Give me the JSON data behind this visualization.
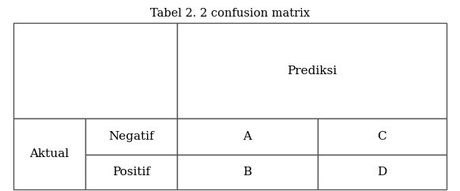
{
  "title": "Tabel 2. 2 confusion matrix",
  "title_fontsize": 10.5,
  "font_family": "serif",
  "background_color": "#ffffff",
  "line_color": "#555555",
  "text_color": "#000000",
  "cells": {
    "prediksi_label": "Prediksi",
    "aktual_label": "Aktual",
    "negatif_label": "Negatif",
    "positif_label": "Positif",
    "cell_A": "A",
    "cell_B": "B",
    "cell_C": "C",
    "cell_D": "D"
  },
  "cell_fontsize": 11,
  "label_fontsize": 11,
  "c0": 0.03,
  "c1": 0.185,
  "c2": 0.385,
  "c3": 0.69,
  "c4": 0.97,
  "r0": 0.88,
  "r1": 0.38,
  "r2": 0.19,
  "r3": 0.01
}
